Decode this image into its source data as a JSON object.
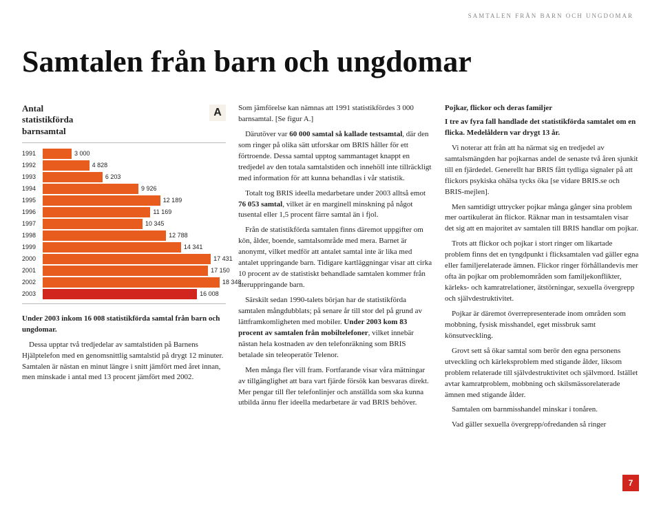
{
  "header_runner": "SAMTALEN FRÅN BARN OCH UNGDOMAR",
  "title": "Samtalen från barn och ungdomar",
  "page_number": "7",
  "chart": {
    "title_line1": "Antal",
    "title_line2": "statistikförda",
    "title_line3": "barnsamtal",
    "letter": "A",
    "max": 19000,
    "rows": [
      {
        "year": "1991",
        "value": 3000,
        "label": "3 000"
      },
      {
        "year": "1992",
        "value": 4828,
        "label": "4 828"
      },
      {
        "year": "1993",
        "value": 6203,
        "label": "6 203"
      },
      {
        "year": "1994",
        "value": 9926,
        "label": "9 926"
      },
      {
        "year": "1995",
        "value": 12189,
        "label": "12 189"
      },
      {
        "year": "1996",
        "value": 11169,
        "label": "11 169"
      },
      {
        "year": "1997",
        "value": 10345,
        "label": "10 345"
      },
      {
        "year": "1998",
        "value": 12788,
        "label": "12 788"
      },
      {
        "year": "1999",
        "value": 14341,
        "label": "14 341"
      },
      {
        "year": "2000",
        "value": 17431,
        "label": "17 431"
      },
      {
        "year": "2001",
        "value": 17150,
        "label": "17 150"
      },
      {
        "year": "2002",
        "value": 18348,
        "label": "18 348"
      },
      {
        "year": "2003",
        "value": 16008,
        "label": "16 008",
        "highlight": true
      }
    ],
    "colors": {
      "bar": "#e85c1e",
      "highlight": "#d0261e",
      "bg": "#ffffff"
    }
  },
  "col1": {
    "p1a": "Under 2003 inkom 16 008 statistikförda samtal från barn och ungdomar.",
    "p2": "Dessa upptar två tredjedelar av samtalstiden på Barnens Hjälptelefon med en genomsnittlig samtalstid på drygt 12 minuter. Samtalen är nästan en minut längre i snitt jämfört med året innan, men minskade i antal med 13 procent jämfört med 2002."
  },
  "col2": {
    "p1": "Som jämförelse kan nämnas att 1991 statistikfördes 3 000 barnsamtal. [Se figur A.]",
    "p2a": "Därutöver var ",
    "p2b": "60 000 samtal så kallade testsamtal",
    "p2c": ", där den som ringer på olika sätt utforskar om BRIS håller för ett förtroende. Dessa samtal upptog sammantaget knappt en tredjedel av den totala samtalstiden och innehöll inte tillräckligt med information för att kunna behandlas i vår statistik.",
    "p3a": "Totalt tog BRIS ideella medarbetare under 2003 alltså emot ",
    "p3b": "76 053 samtal",
    "p3c": ", vilket är en marginell minskning på något tusental eller 1,5 procent färre samtal än i fjol.",
    "p4": "Från de statistikförda samtalen finns däremot uppgifter om kön, ålder, boende, samtalsområde med mera. Barnet är anonymt, vilket medför att antalet samtal inte är lika med antalet uppringande barn. Tidigare kartläggningar visar att cirka 10 procent av de statistiskt behandlade samtalen kommer från återuppringande barn.",
    "p5a": "Särskilt sedan 1990-talets början har de statistikförda samtalen mångdubblats; på senare år till stor del på grund av lättframkomligheten med mobiler. ",
    "p5b": "Under 2003 kom 83 procent av samtalen från mobiltelefoner",
    "p5c": ", vilket innebär nästan hela kostnaden av den telefonräkning som BRIS betalade sin teleoperatör Telenor.",
    "p6": "Men många fler vill fram. Fortfarande visar våra mätningar av tillgänglighet att bara vart fjärde försök kan besvaras direkt. Mer pengar till fler telefonlinjer och anställda som ska kunna utbilda ännu fler ideella medarbetare är vad BRIS behöver."
  },
  "col3": {
    "subhead": "Pojkar, flickor och deras familjer",
    "p1a": "I tre av fyra fall handlade det statistikförda samtalet om en flicka. Medelåldern var drygt 13 år.",
    "p2": "Vi noterar att från att ha närmat sig en tredjedel av samtalsmängden har pojkarnas andel de senaste två åren sjunkit till en fjärdedel. Generellt har BRIS fått tydliga signaler på att flickors psykiska ohälsa tycks öka [se vidare BRIS.se och BRIS-mejlen].",
    "p3": "Men samtidigt uttrycker pojkar många gånger sina problem mer oartikulerat än flickor. Räknar man in testsamtalen visar det sig att en majoritet av samtalen till BRIS handlar om pojkar.",
    "p4": "Trots att flickor och pojkar i stort ringer om likartade problem finns det en tyngdpunkt i flicksamtalen vad gäller egna eller familjerelaterade ämnen. Flickor ringer förhållandevis mer ofta än pojkar om problemområden som familjekonflikter, kärleks- och kamratrelationer, ätstörningar, sexuella övergrepp och självdestruktivitet.",
    "p5": "Pojkar är däremot överrepresenterade inom områden som mobbning, fysisk misshandel, eget missbruk samt könsutveckling.",
    "p6": "Grovt sett så ökar samtal som berör den egna personens utveckling och kärleksproblem med stigande ålder, liksom problem relaterade till självdestruktivitet och självmord.",
    "p7": "Samtalen om barnmisshandel minskar i tonåren.",
    "p8": "Vad gäller sexuella övergrepp/ofredanden så ringer"
  },
  "col3_extra": "Istället avtar kamratproblem, mobbning och skilsmässorelaterade ämnen med stigande ålder."
}
